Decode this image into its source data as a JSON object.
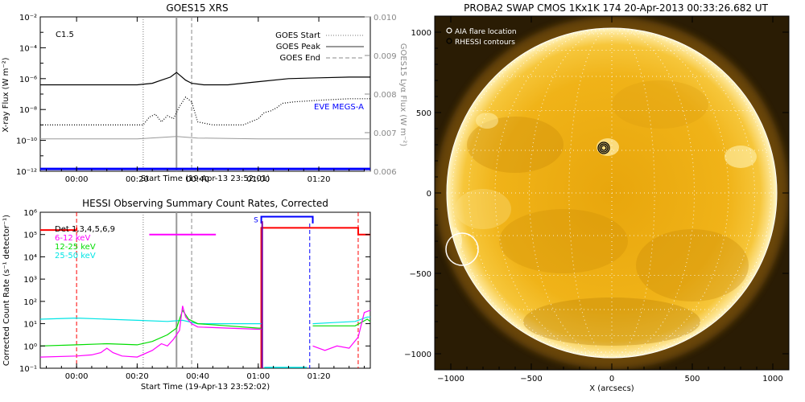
{
  "chart_data": [
    {
      "type": "line",
      "title": "GOES15 XRS",
      "annotation": "C1.5",
      "xlabel": "Start Time (19-Apr-13 23:52:01)",
      "ylabel": "X-ray Flux (W m⁻²)",
      "y2label": "GOES15 Lyα Flux (W m⁻²)",
      "x_ticks": [
        "00:00",
        "00:20",
        "00:40",
        "01:00",
        "01:20"
      ],
      "y_ticks": [
        "10⁻²",
        "10⁻⁴",
        "10⁻⁶",
        "10⁻⁸",
        "10⁻¹⁰",
        "10⁻¹²"
      ],
      "y2_ticks": [
        "0.010",
        "0.009",
        "0.008",
        "0.007",
        "0.006"
      ],
      "ylog": true,
      "ylim_exp": [
        -12,
        -2
      ],
      "y2lim": [
        0.006,
        0.01
      ],
      "xlim_min": [
        -12,
        97
      ],
      "legend": {
        "position": "top-right",
        "entries": [
          "GOES Start",
          "GOES Peak",
          "GOES End",
          "EVE MEGS-A"
        ]
      },
      "markers_min": {
        "start": 22,
        "peak": 33,
        "end": 38
      },
      "series": [
        {
          "name": "",
          "style": "black-solid",
          "x": [
            -12,
            0,
            10,
            20,
            25,
            28,
            31,
            33,
            36,
            38,
            42,
            50,
            60,
            70,
            80,
            90,
            97
          ],
          "y": [
            -6.4,
            -6.4,
            -6.4,
            -6.4,
            -6.3,
            -6.1,
            -5.9,
            -5.6,
            -6.1,
            -6.3,
            -6.4,
            -6.4,
            -6.2,
            -6.0,
            -5.95,
            -5.9,
            -5.9
          ]
        },
        {
          "name": "",
          "style": "black-dotted",
          "x": [
            -12,
            5,
            15,
            22,
            24,
            26,
            28,
            30,
            32,
            34,
            36,
            38,
            40,
            45,
            50,
            55,
            60,
            62,
            64,
            66,
            68,
            72,
            80,
            90,
            97
          ],
          "y": [
            -9.0,
            -9.0,
            -9.0,
            -9.0,
            -8.5,
            -8.3,
            -8.8,
            -8.4,
            -8.6,
            -7.8,
            -7.2,
            -7.5,
            -8.8,
            -9.0,
            -9.0,
            -9.0,
            -8.6,
            -8.2,
            -8.1,
            -7.9,
            -7.6,
            -7.5,
            -7.4,
            -7.3,
            -7.3
          ]
        },
        {
          "name": "",
          "style": "gray",
          "x": [
            -12,
            20,
            33,
            40,
            60,
            97
          ],
          "y": [
            -9.9,
            -9.9,
            -9.75,
            -9.85,
            -9.9,
            -9.9
          ]
        },
        {
          "name": "EVE MEGS-A",
          "style": "blue",
          "x": [
            -12,
            97
          ],
          "y": [
            -11.85,
            -11.85
          ]
        }
      ]
    },
    {
      "type": "line",
      "title": "HESSI Observing Summary Count Rates, Corrected",
      "xlabel": "Start Time (19-Apr-13 23:52:02)",
      "ylabel": "Corrected Count Rate (s⁻¹ detector⁻¹)",
      "x_ticks": [
        "00:00",
        "00:20",
        "00:40",
        "01:00",
        "01:20"
      ],
      "y_ticks": [
        "10⁶",
        "10⁵",
        "10⁴",
        "10³",
        "10²",
        "10¹",
        "10⁰",
        "10⁻¹"
      ],
      "ylog": true,
      "ylim_exp": [
        -1,
        6
      ],
      "xlim_min": [
        -12,
        97
      ],
      "flag_label": "S",
      "legend": {
        "position": "top-left",
        "entries": [
          "Det 1,3,4,5,6,9",
          "6-12 keV",
          "12-25 keV",
          "25-50 keV"
        ]
      },
      "colors": {
        "det": "#ff0000",
        "low": "#ff00ff",
        "mid": "#00dd00",
        "high": "#00e5e5",
        "flag": "#0000ff",
        "purple": "#7a00a0"
      },
      "series": [
        {
          "name": "25-50 keV",
          "x": [
            -12,
            0,
            10,
            20,
            30,
            35,
            40,
            50,
            60,
            61
          ],
          "y": [
            1.2,
            1.25,
            1.2,
            1.15,
            1.1,
            1.15,
            1.0,
            1.0,
            1.0,
            1.0
          ]
        },
        {
          "name": "12-25 keV",
          "x": [
            -12,
            0,
            10,
            20,
            25,
            30,
            33,
            35,
            37,
            40,
            50,
            60,
            61
          ],
          "y": [
            0.0,
            0.05,
            0.1,
            0.05,
            0.2,
            0.5,
            0.8,
            1.6,
            1.2,
            1.0,
            0.9,
            0.8,
            0.8
          ]
        },
        {
          "name": "6-12 keV",
          "x": [
            -12,
            0,
            5,
            8,
            10,
            12,
            15,
            20,
            25,
            28,
            30,
            32,
            34,
            35,
            36,
            38,
            40,
            50,
            60,
            61
          ],
          "y": [
            -0.5,
            -0.45,
            -0.4,
            -0.3,
            -0.1,
            -0.3,
            -0.45,
            -0.5,
            -0.2,
            0.1,
            0.0,
            0.3,
            0.7,
            1.8,
            1.3,
            1.0,
            0.85,
            0.8,
            0.75,
            0.75
          ]
        }
      ]
    },
    {
      "type": "heatmap",
      "title": "PROBA2 SWAP CMOS 1Kx1K 174 20-Apr-2013 00:33:26.682 UT",
      "xlabel": "X (arcsecs)",
      "ylabel": "",
      "x_ticks": [
        "−1000",
        "−500",
        "0",
        "500",
        "1000"
      ],
      "y_ticks": [
        "1000",
        "500",
        "0",
        "−500",
        "−1000"
      ],
      "xlim": [
        -1100,
        1100
      ],
      "ylim": [
        -1100,
        1100
      ],
      "legend": {
        "position": "top-left",
        "entries": [
          "AIA flare location",
          "RHESSI contours"
        ]
      },
      "aia_flare_location": [
        -930,
        -350
      ],
      "rhessi_contours_center": [
        -50,
        280
      ]
    }
  ]
}
